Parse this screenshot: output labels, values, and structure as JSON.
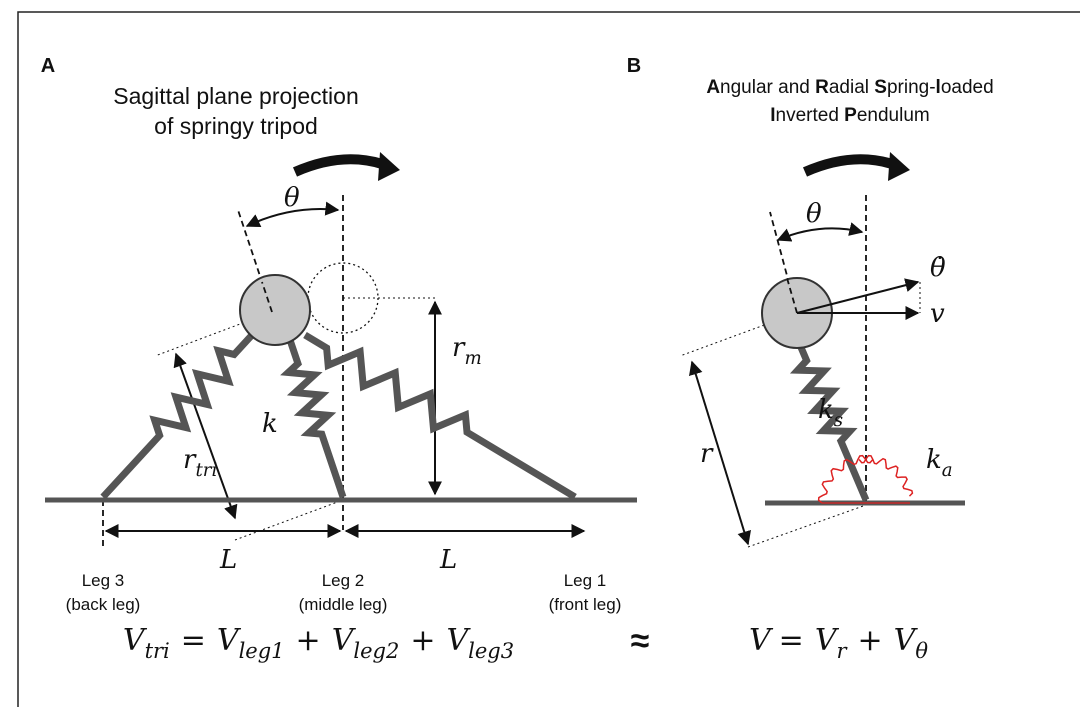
{
  "panel_a": {
    "label": "A",
    "title": [
      "Sagittal plane projection",
      "of springy tripod"
    ],
    "theta": "θ",
    "r_m": {
      "base": "r",
      "sub": "m"
    },
    "k": "k",
    "r_tri": {
      "base": "r",
      "sub": "tri"
    },
    "L": [
      "L",
      "L"
    ],
    "legs": [
      {
        "name": "Leg 3",
        "role": "(back leg)"
      },
      {
        "name": "Leg 2",
        "role": "(middle leg)"
      },
      {
        "name": "Leg 1",
        "role": "(front leg)"
      }
    ]
  },
  "panel_b": {
    "label": "B",
    "title": [
      [
        "A",
        "ngular and ",
        "R",
        "adial ",
        "S",
        "pring-",
        "l",
        "oaded"
      ],
      [
        "I",
        "nverted ",
        "P",
        "endulum"
      ]
    ],
    "theta": "θ",
    "theta_dot": "θ̇",
    "v": "v",
    "k_s": {
      "base": "k",
      "sub": "s"
    },
    "k_a": {
      "base": "k",
      "sub": "a"
    },
    "r": "r"
  },
  "equations": {
    "left": {
      "terms": [
        {
          "base": "V",
          "sub": "tri"
        },
        {
          "base": "V",
          "sub": "leg1"
        },
        {
          "base": "V",
          "sub": "leg2"
        },
        {
          "base": "V",
          "sub": "leg3"
        }
      ],
      "ops": [
        "=",
        "+",
        "+"
      ]
    },
    "approx": "≈",
    "right": {
      "terms": [
        {
          "base": "V"
        },
        {
          "base": "V",
          "sub": "r"
        },
        {
          "base": "V",
          "sub": "θ"
        }
      ],
      "ops": [
        "=",
        "+"
      ]
    }
  }
}
